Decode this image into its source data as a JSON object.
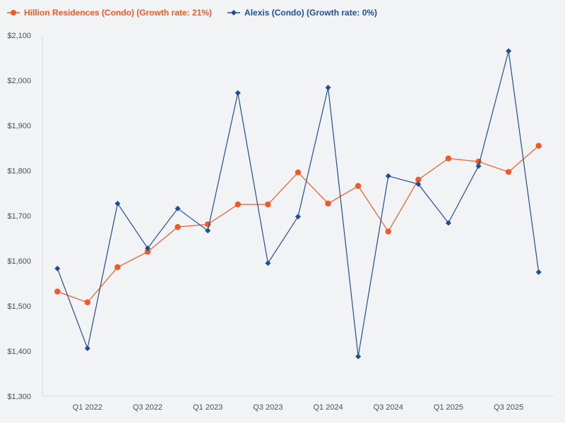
{
  "chart_data": {
    "type": "line",
    "title": "",
    "xlabel": "",
    "ylabel": "",
    "ylim": [
      1300,
      2100
    ],
    "y_ticks": [
      1300,
      1400,
      1500,
      1600,
      1700,
      1800,
      1900,
      2000,
      2100
    ],
    "y_tick_labels": [
      "$1,300",
      "$1,400",
      "$1,500",
      "$1,600",
      "$1,700",
      "$1,800",
      "$1,900",
      "$2,000",
      "$2,100"
    ],
    "x_tick_labels": [
      {
        "index": 1,
        "label": "Q1 2022"
      },
      {
        "index": 3,
        "label": "Q3 2022"
      },
      {
        "index": 5,
        "label": "Q1 2023"
      },
      {
        "index": 7,
        "label": "Q3 2023"
      },
      {
        "index": 9,
        "label": "Q1 2024"
      },
      {
        "index": 11,
        "label": "Q3 2024"
      },
      {
        "index": 13,
        "label": "Q1 2025"
      },
      {
        "index": 15,
        "label": "Q3 2025"
      }
    ],
    "grid": false,
    "legend_position": "top-left",
    "series": [
      {
        "name": "Hillion Residences (Condo) (Growth rate: 21%)",
        "color": "#f05a28",
        "marker": "circle",
        "values": [
          1532,
          1508,
          1586,
          1620,
          1675,
          1681,
          1725,
          1725,
          1796,
          1727,
          1766,
          1665,
          1780,
          1827,
          1820,
          1797,
          1855
        ]
      },
      {
        "name": "Alexis (Condo) (Growth rate: 0%)",
        "color": "#1f4e99",
        "marker": "diamond",
        "values": [
          1583,
          1406,
          1727,
          1628,
          1716,
          1667,
          1972,
          1595,
          1698,
          1984,
          1388,
          1788,
          1770,
          1684,
          1810,
          2065,
          1575
        ]
      }
    ]
  }
}
